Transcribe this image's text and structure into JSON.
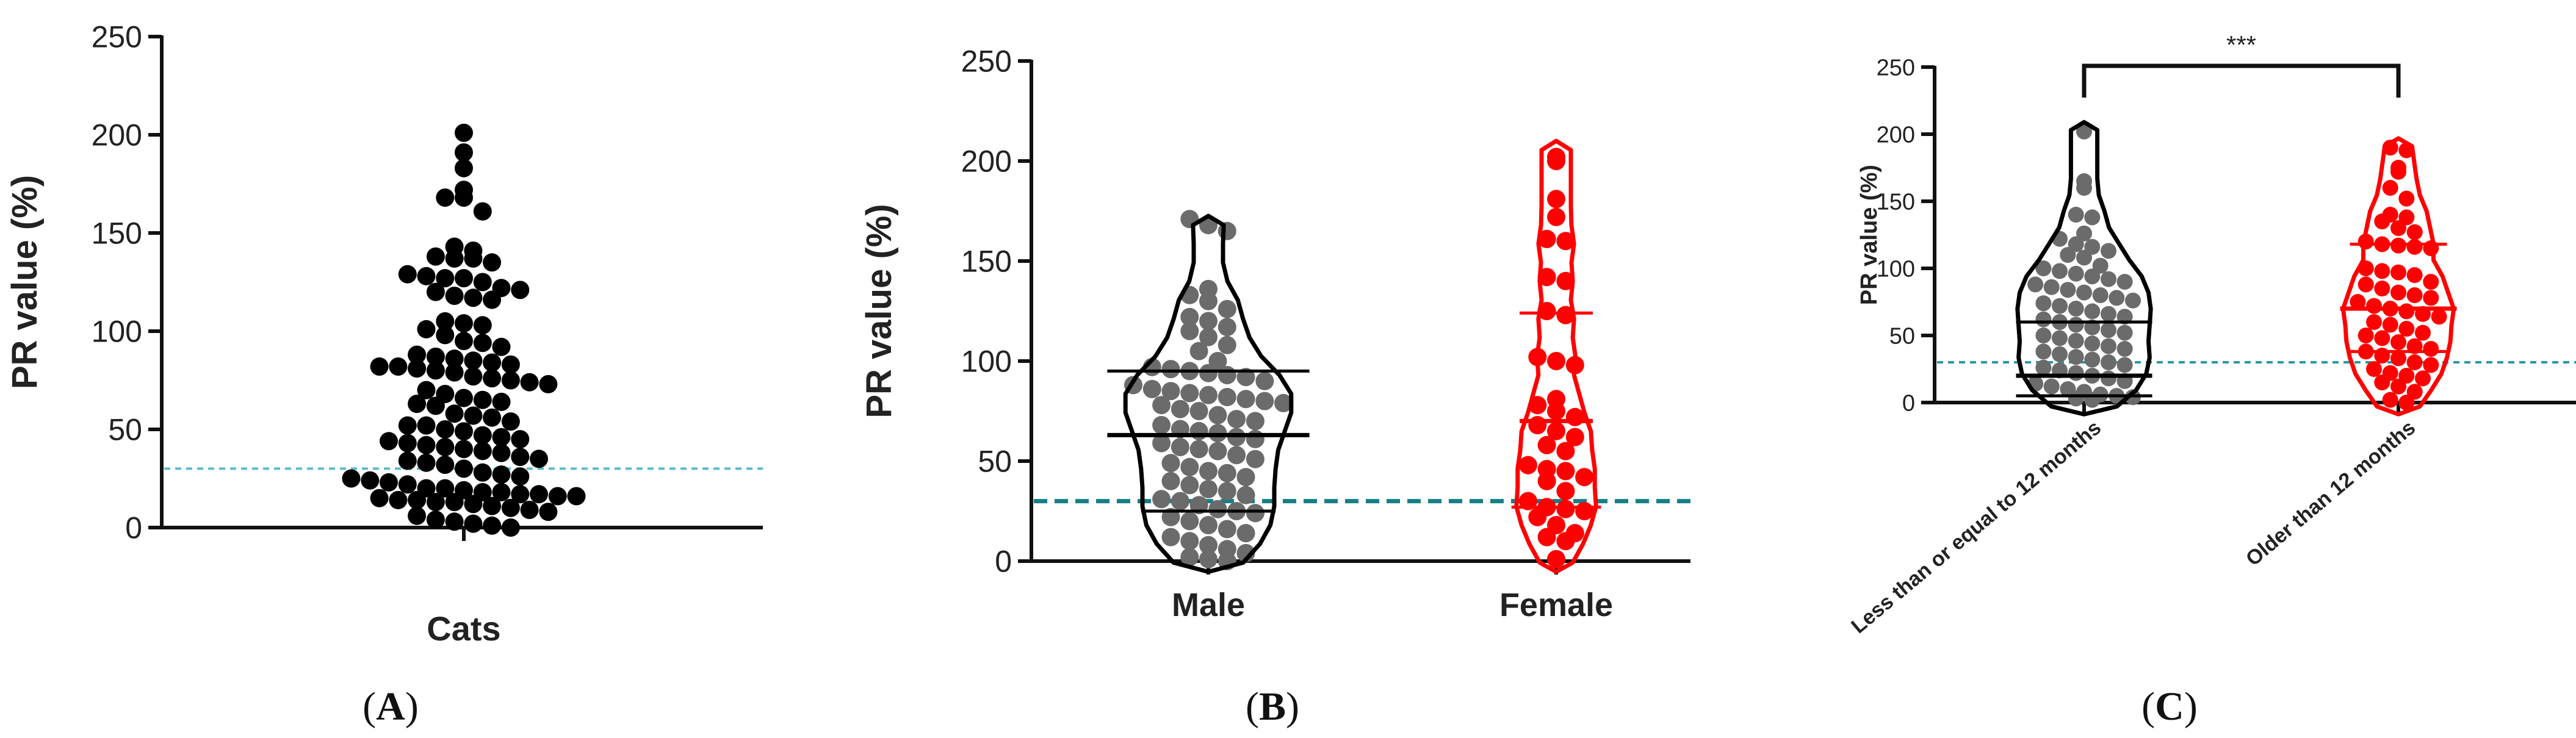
{
  "panels": [
    {
      "id": "A",
      "label_open": "(",
      "label_letter": "A",
      "label_close": ")"
    },
    {
      "id": "B",
      "label_open": "(",
      "label_letter": "B",
      "label_close": ")"
    },
    {
      "id": "C",
      "label_open": "(",
      "label_letter": "C",
      "label_close": ")"
    }
  ],
  "chart_data": [
    {
      "type": "scatter",
      "style": "dot-plot",
      "ylabel": "PR value (%)",
      "ylim": [
        0,
        250
      ],
      "yticks": [
        0,
        50,
        100,
        150,
        200,
        250
      ],
      "categories": [
        "Cats"
      ],
      "reference_line": 30,
      "reference_line_color": "#5bbcc6",
      "series": [
        {
          "color": "#000000",
          "values": [
            201,
            191,
            183,
            172,
            168,
            168,
            161,
            143,
            141,
            138,
            137,
            137,
            135,
            129,
            128,
            127,
            127,
            125,
            122,
            121,
            120,
            118,
            117,
            116,
            105,
            104,
            103,
            101,
            98,
            95,
            94,
            92,
            88,
            87,
            86,
            85,
            84,
            83,
            82,
            82,
            81,
            80,
            79,
            77,
            76,
            75,
            74,
            73,
            70,
            68,
            66,
            65,
            64,
            63,
            62,
            58,
            57,
            56,
            54,
            52,
            52,
            50,
            49,
            47,
            46,
            45,
            44,
            43,
            42,
            41,
            40,
            39,
            38,
            36,
            35,
            34,
            33,
            32,
            30,
            28,
            27,
            26,
            25,
            24,
            23,
            22,
            20,
            20,
            19,
            18,
            18,
            17,
            17,
            16,
            16,
            15,
            14,
            14,
            13,
            13,
            12,
            11,
            10,
            9,
            8,
            6,
            4,
            3,
            2,
            1,
            0
          ]
        }
      ]
    },
    {
      "type": "scatter",
      "style": "violin",
      "ylabel": "PR value (%)",
      "ylim": [
        0,
        250
      ],
      "yticks": [
        0,
        50,
        100,
        150,
        200,
        250
      ],
      "categories": [
        "Male",
        "Female"
      ],
      "reference_line": 30,
      "reference_line_color": "#167f86",
      "series": [
        {
          "name": "Male",
          "color": "#6b6b6b",
          "outline": "#000000",
          "median": 63,
          "q1": 25,
          "q3": 95,
          "values": [
            171,
            168,
            165,
            136,
            133,
            130,
            126,
            122,
            120,
            117,
            115,
            112,
            108,
            105,
            100,
            97,
            96,
            95,
            94,
            93,
            92,
            90,
            88,
            86,
            85,
            84,
            83,
            82,
            81,
            80,
            79,
            78,
            76,
            75,
            73,
            71,
            70,
            68,
            66,
            65,
            64,
            62,
            61,
            59,
            57,
            56,
            55,
            53,
            51,
            49,
            47,
            45,
            44,
            42,
            40,
            38,
            36,
            35,
            33,
            31,
            30,
            28,
            26,
            25,
            24,
            22,
            20,
            18,
            16,
            14,
            12,
            10,
            8,
            6,
            4,
            2,
            1,
            0
          ]
        },
        {
          "name": "Female",
          "color": "#ff0000",
          "outline": "#ff0000",
          "median": 70,
          "q1": 27,
          "q3": 124,
          "values": [
            202,
            200,
            181,
            172,
            161,
            160,
            142,
            140,
            125,
            123,
            102,
            100,
            98,
            81,
            78,
            75,
            72,
            68,
            65,
            62,
            58,
            55,
            48,
            46,
            45,
            42,
            40,
            35,
            30,
            27,
            26,
            25,
            22,
            18,
            14,
            12,
            10,
            1
          ]
        }
      ]
    },
    {
      "type": "scatter",
      "style": "violin",
      "ylabel": "PR value (%)",
      "ylim": [
        0,
        250
      ],
      "yticks": [
        0,
        50,
        100,
        150,
        200,
        250
      ],
      "categories": [
        "Less than or equal to 12 months",
        "Older than 12 months"
      ],
      "reference_line": 30,
      "reference_line_color": "#2a97a7",
      "significance": "***",
      "series": [
        {
          "name": "Less than or equal to 12 months",
          "color": "#6b6b6b",
          "outline": "#000000",
          "median": 20,
          "q1": 5,
          "q3": 60,
          "values": [
            202,
            165,
            160,
            140,
            138,
            126,
            122,
            118,
            116,
            113,
            110,
            108,
            102,
            100,
            98,
            96,
            94,
            92,
            90,
            88,
            86,
            84,
            82,
            80,
            78,
            76,
            74,
            72,
            70,
            68,
            66,
            64,
            62,
            60,
            58,
            56,
            54,
            52,
            50,
            48,
            46,
            44,
            42,
            40,
            38,
            36,
            34,
            32,
            30,
            28,
            26,
            24,
            22,
            20,
            18,
            16,
            14,
            12,
            10,
            8,
            6,
            5,
            4,
            3,
            2
          ]
        },
        {
          "name": "Older than 12 months",
          "color": "#ff0000",
          "outline": "#ff0000",
          "median": 70,
          "q1": 38,
          "q3": 118,
          "values": [
            190,
            188,
            175,
            172,
            160,
            152,
            140,
            138,
            135,
            130,
            127,
            120,
            118,
            117,
            116,
            115,
            100,
            98,
            97,
            95,
            90,
            88,
            85,
            82,
            80,
            78,
            75,
            72,
            70,
            68,
            66,
            64,
            60,
            58,
            55,
            52,
            50,
            48,
            45,
            42,
            40,
            38,
            35,
            33,
            30,
            28,
            25,
            22,
            20,
            18,
            15,
            12,
            8,
            2,
            0
          ]
        }
      ]
    }
  ]
}
